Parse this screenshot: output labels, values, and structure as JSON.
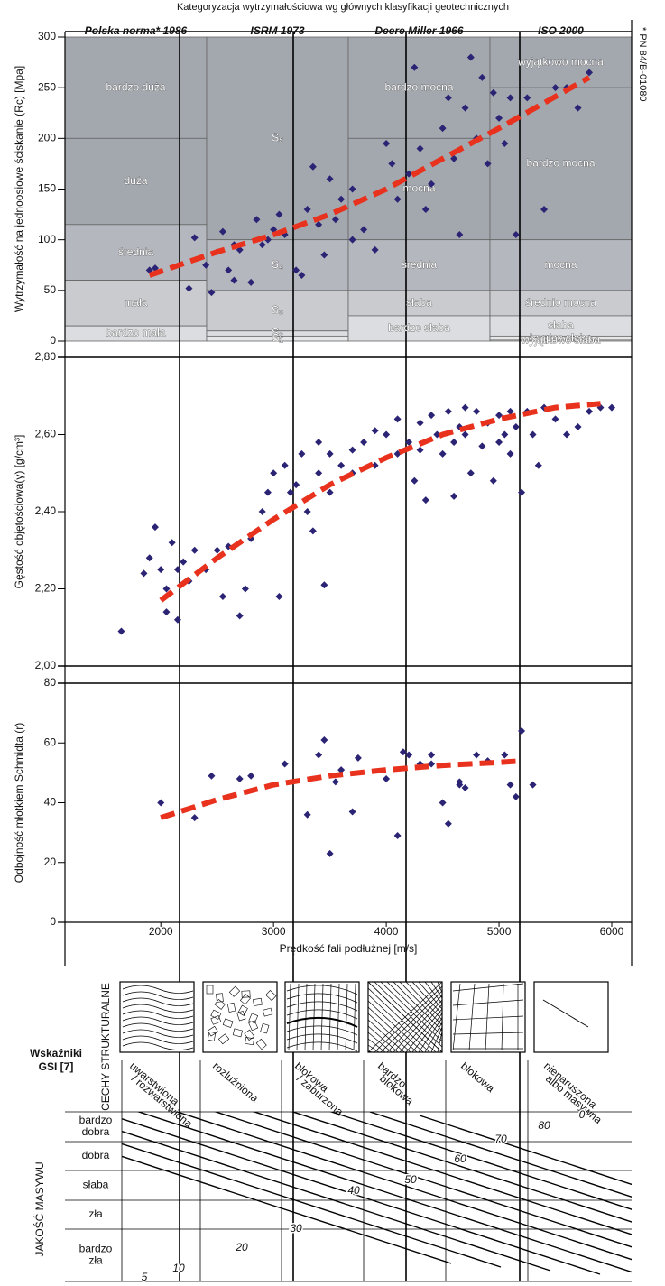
{
  "chart_data": [
    {
      "type": "scatter",
      "title": "Kategoryzacja  wytrzymałościowa wg głównych klasyfikacji geotechnicznych",
      "note": "* PN 84/B-01080",
      "y_label": "Wytrzymałość na jednoosiowe ściskanie (Rc) [Mpa]",
      "xlim": [
        1150,
        6176
      ],
      "ylim": [
        0,
        300
      ],
      "yticks": [
        0,
        50,
        100,
        150,
        200,
        250,
        300
      ],
      "columns": [
        {
          "title": "Polska norma* 1986",
          "bands": [
            {
              "label": "bardzo duża",
              "from": 200,
              "to": 300,
              "color": "#a3a7ae"
            },
            {
              "label": "duża",
              "from": 115,
              "to": 200,
              "color": "#a3a7ae"
            },
            {
              "label": "średnia",
              "from": 60,
              "to": 115,
              "color": "#b4b7bd"
            },
            {
              "label": "mała",
              "from": 15,
              "to": 60,
              "color": "#c9cbcf"
            },
            {
              "label": "bardzo mała",
              "from": 0,
              "to": 15,
              "color": "#dcdde0"
            }
          ]
        },
        {
          "title": "ISRM 1973",
          "bands": [
            {
              "label": "S₅",
              "from": 100,
              "to": 300,
              "color": "#a3a7ae"
            },
            {
              "label": "S₄",
              "from": 50,
              "to": 100,
              "color": "#b4b7bd"
            },
            {
              "label": "S₃",
              "from": 10,
              "to": 50,
              "color": "#c9cbcf"
            },
            {
              "label": "S₂",
              "from": 5,
              "to": 10,
              "color": "#dcdde0"
            },
            {
              "label": "S₁",
              "from": 0,
              "to": 5,
              "color": "#e6e7e9"
            }
          ]
        },
        {
          "title": "Deere Miller 1966",
          "bands": [
            {
              "label": "bardzo mocna",
              "from": 200,
              "to": 300,
              "color": "#a3a7ae"
            },
            {
              "label": "mocna",
              "from": 100,
              "to": 200,
              "color": "#a3a7ae"
            },
            {
              "label": "średnia",
              "from": 50,
              "to": 100,
              "color": "#b4b7bd"
            },
            {
              "label": "słaba",
              "from": 25,
              "to": 50,
              "color": "#c9cbcf"
            },
            {
              "label": "bardzo słaba",
              "from": 0,
              "to": 25,
              "color": "#dcdde0"
            }
          ]
        },
        {
          "title": "ISO 2000",
          "bands": [
            {
              "label": "wyjątkowo mocna",
              "from": 250,
              "to": 300,
              "color": "#a3a7ae"
            },
            {
              "label": "bardzo mocna",
              "from": 100,
              "to": 250,
              "color": "#a3a7ae"
            },
            {
              "label": "mocna",
              "from": 50,
              "to": 100,
              "color": "#b4b7bd"
            },
            {
              "label": "średnio mocna",
              "from": 25,
              "to": 50,
              "color": "#c9cbcf"
            },
            {
              "label": "słaba",
              "from": 5,
              "to": 25,
              "color": "#dcdde0"
            },
            {
              "label": "bardzo słaba",
              "from": 1,
              "to": 5,
              "color": "#e6e7e9"
            },
            {
              "label": "wyjątkowo słaba",
              "from": 0,
              "to": 1,
              "color": "#eeeeef"
            }
          ]
        }
      ],
      "series": [
        {
          "color": "#2b2475",
          "x": [
            1900,
            1950,
            2250,
            2300,
            2400,
            2450,
            2500,
            2550,
            2600,
            2650,
            2700,
            2800,
            2850,
            2900,
            2950,
            3000,
            3050,
            3100,
            3200,
            3300,
            3350,
            3400,
            3450,
            3500,
            3550,
            3600,
            3700,
            3700,
            3800,
            3900,
            4000,
            4050,
            4100,
            4200,
            4300,
            4350,
            4400,
            4500,
            4550,
            4600,
            4650,
            4700,
            4750,
            4800,
            4850,
            4900,
            4950,
            5000,
            5050,
            5100,
            5150,
            5250,
            5400,
            5500,
            5600,
            5700,
            5800,
            4250,
            3250,
            2650
          ],
          "values": [
            70,
            72,
            52,
            102,
            75,
            48,
            88,
            108,
            70,
            95,
            90,
            58,
            120,
            95,
            100,
            110,
            125,
            105,
            70,
            130,
            172,
            115,
            85,
            160,
            120,
            140,
            150,
            100,
            110,
            90,
            195,
            175,
            140,
            165,
            190,
            130,
            155,
            210,
            240,
            180,
            105,
            230,
            280,
            200,
            260,
            175,
            245,
            220,
            195,
            240,
            105,
            240,
            130,
            250,
            250,
            230,
            265,
            270,
            65,
            60
          ]
        },
        {
          "color": "#e8321e",
          "style": "dashed",
          "x": [
            1900,
            2500,
            3000,
            3500,
            4000,
            4500,
            5000,
            5800
          ],
          "values": [
            65,
            88,
            105,
            125,
            150,
            180,
            210,
            260
          ]
        }
      ]
    },
    {
      "type": "scatter",
      "y_label": "Gęstość objętościowa(γ) [g/cm³]",
      "xlim": [
        1150,
        6176
      ],
      "ylim": [
        2.0,
        2.8
      ],
      "yticks": [
        {
          "value": 2.0,
          "label": "2,00"
        },
        {
          "value": 2.2,
          "label": "2,20"
        },
        {
          "value": 2.4,
          "label": "2,40"
        },
        {
          "value": 2.6,
          "label": "2,60"
        },
        {
          "value": 2.8,
          "label": "2,80"
        }
      ],
      "series": [
        {
          "color": "#2b2475",
          "x": [
            1650,
            1900,
            1950,
            2000,
            2050,
            2100,
            2150,
            2050,
            2200,
            2300,
            2400,
            2500,
            2550,
            2600,
            2700,
            2750,
            2800,
            2900,
            2950,
            3000,
            3050,
            3100,
            3150,
            3200,
            3250,
            3300,
            3350,
            3400,
            3450,
            3500,
            3600,
            3700,
            3800,
            3900,
            4000,
            4100,
            4200,
            4250,
            4300,
            4350,
            4400,
            4450,
            4500,
            4550,
            4600,
            4650,
            4700,
            4750,
            4800,
            4850,
            4900,
            4950,
            5000,
            5050,
            5100,
            5150,
            5200,
            5250,
            5300,
            5350,
            5400,
            5500,
            5600,
            5700,
            5800,
            5900,
            6000,
            3900,
            4100,
            3500,
            3700,
            4300,
            4600,
            5100,
            2150,
            2250,
            1850,
            3400,
            4700,
            5000
          ],
          "values": [
            2.09,
            2.28,
            2.36,
            2.25,
            2.2,
            2.32,
            2.12,
            2.14,
            2.27,
            2.3,
            2.25,
            2.3,
            2.18,
            2.31,
            2.13,
            2.2,
            2.33,
            2.4,
            2.45,
            2.5,
            2.18,
            2.52,
            2.45,
            2.47,
            2.55,
            2.4,
            2.35,
            2.5,
            2.21,
            2.55,
            2.52,
            2.56,
            2.58,
            2.52,
            2.6,
            2.55,
            2.58,
            2.48,
            2.63,
            2.43,
            2.65,
            2.6,
            2.55,
            2.66,
            2.44,
            2.62,
            2.6,
            2.5,
            2.66,
            2.57,
            2.63,
            2.48,
            2.65,
            2.6,
            2.55,
            2.62,
            2.45,
            2.66,
            2.6,
            2.52,
            2.67,
            2.64,
            2.6,
            2.62,
            2.66,
            2.67,
            2.67,
            2.61,
            2.64,
            2.45,
            2.5,
            2.56,
            2.58,
            2.66,
            2.25,
            2.22,
            2.24,
            2.58,
            2.67,
            2.58
          ]
        },
        {
          "color": "#e8321e",
          "style": "dashed",
          "x": [
            2000,
            2500,
            3000,
            3500,
            4000,
            4500,
            5000,
            5500,
            5900
          ],
          "values": [
            2.17,
            2.28,
            2.38,
            2.47,
            2.54,
            2.6,
            2.64,
            2.67,
            2.68
          ]
        }
      ]
    },
    {
      "type": "scatter",
      "y_label": "Odbojność młotkiem Schmidta (r)",
      "x_label": "Prędkość fali podłużnej [m/s]",
      "xlim": [
        1150,
        6176
      ],
      "xticks": [
        2000,
        3000,
        4000,
        5000,
        6000
      ],
      "ylim": [
        0,
        80
      ],
      "yticks": [
        0,
        20,
        40,
        60,
        80
      ],
      "series": [
        {
          "color": "#2b2475",
          "x": [
            2000,
            2300,
            2450,
            2700,
            2800,
            3100,
            3300,
            3400,
            3450,
            3550,
            3500,
            3600,
            3700,
            3750,
            4000,
            4100,
            4150,
            4200,
            4300,
            4400,
            4500,
            4550,
            4650,
            4700,
            4800,
            4900,
            5050,
            5100,
            5150,
            5200,
            5300,
            4400,
            4650
          ],
          "values": [
            40,
            35,
            49,
            48,
            49,
            53,
            36,
            56,
            61,
            47,
            23,
            51,
            37,
            55,
            48,
            29,
            57,
            56,
            53,
            53,
            40,
            33,
            46,
            45,
            56,
            54,
            56,
            46,
            42,
            64,
            46,
            56,
            47
          ]
        },
        {
          "color": "#e8321e",
          "style": "dashed",
          "x": [
            2000,
            2500,
            3000,
            3500,
            4000,
            4500,
            5000,
            5200
          ],
          "values": [
            35,
            41,
            46,
            49,
            51,
            52.5,
            53.5,
            54
          ]
        }
      ]
    }
  ],
  "gsi": {
    "title": [
      "Wskaźniki",
      "GSI [7]"
    ],
    "structure_heading": "CECHY STRUKTURALNE",
    "structures": [
      [
        "uwarstwiona",
        "/ rozwarstwiona"
      ],
      [
        "rozluźniona"
      ],
      [
        "blokowa",
        "/ zaburzona"
      ],
      [
        "bardzo",
        "blokowa"
      ],
      [
        "blokowa"
      ],
      [
        "nienaruszona",
        "albo masywna"
      ]
    ],
    "quality_heading": "JAKOŚĆ MASYWU",
    "quality": [
      [
        "bardzo",
        "dobra"
      ],
      [
        "dobra"
      ],
      [
        "słaba"
      ],
      [
        "zła"
      ],
      [
        "bardzo",
        "zła"
      ]
    ],
    "contour_labels": [
      5,
      10,
      20,
      30,
      40,
      50,
      60,
      70,
      80,
      0
    ]
  }
}
